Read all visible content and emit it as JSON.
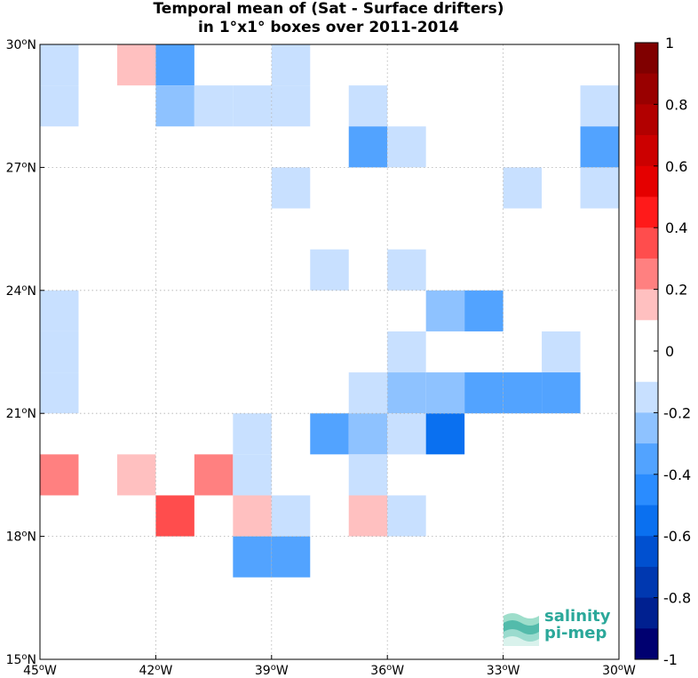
{
  "title": {
    "line1": "Temporal mean of (Sat - Surface drifters)",
    "line2": "in 1°x1° boxes over 2011-2014"
  },
  "map": {
    "lon_range": [
      -45,
      -30
    ],
    "lat_range": [
      15,
      30
    ],
    "x_ticks": [
      {
        "lon": -45,
        "deg": "45",
        "hemi": "W"
      },
      {
        "lon": -42,
        "deg": "42",
        "hemi": "W"
      },
      {
        "lon": -39,
        "deg": "39",
        "hemi": "W"
      },
      {
        "lon": -36,
        "deg": "36",
        "hemi": "W"
      },
      {
        "lon": -33,
        "deg": "33",
        "hemi": "W"
      },
      {
        "lon": -30,
        "deg": "30",
        "hemi": "W"
      }
    ],
    "y_ticks": [
      {
        "lat": 15,
        "deg": "15",
        "hemi": "N"
      },
      {
        "lat": 18,
        "deg": "18",
        "hemi": "N"
      },
      {
        "lat": 21,
        "deg": "21",
        "hemi": "N"
      },
      {
        "lat": 24,
        "deg": "24",
        "hemi": "N"
      },
      {
        "lat": 27,
        "deg": "27",
        "hemi": "N"
      },
      {
        "lat": 30,
        "deg": "30",
        "hemi": "N"
      }
    ],
    "grid": "dotted"
  },
  "chart_data": {
    "type": "heatmap",
    "cell_size_deg": 1,
    "cells": [
      {
        "lon": -45,
        "lat": 29,
        "value": -0.1
      },
      {
        "lon": -45,
        "lat": 28,
        "value": -0.1
      },
      {
        "lon": -43,
        "lat": 29,
        "value": 0.15
      },
      {
        "lon": -42,
        "lat": 29,
        "value": -0.35
      },
      {
        "lon": -42,
        "lat": 28,
        "value": -0.25
      },
      {
        "lon": -39,
        "lat": 29,
        "value": -0.1
      },
      {
        "lon": -41,
        "lat": 28,
        "value": -0.1
      },
      {
        "lon": -40,
        "lat": 28,
        "value": -0.1
      },
      {
        "lon": -39,
        "lat": 28,
        "value": -0.1
      },
      {
        "lon": -37,
        "lat": 28,
        "value": -0.1
      },
      {
        "lon": -31,
        "lat": 28,
        "value": -0.1
      },
      {
        "lon": -37,
        "lat": 27,
        "value": -0.3
      },
      {
        "lon": -36,
        "lat": 27,
        "value": -0.1
      },
      {
        "lon": -31,
        "lat": 27,
        "value": -0.3
      },
      {
        "lon": -39,
        "lat": 26,
        "value": -0.1
      },
      {
        "lon": -33,
        "lat": 26,
        "value": -0.1
      },
      {
        "lon": -31,
        "lat": 26,
        "value": -0.1
      },
      {
        "lon": -38,
        "lat": 24,
        "value": -0.1
      },
      {
        "lon": -36,
        "lat": 24,
        "value": -0.1
      },
      {
        "lon": -45,
        "lat": 23,
        "value": -0.1
      },
      {
        "lon": -45,
        "lat": 22,
        "value": -0.1
      },
      {
        "lon": -45,
        "lat": 21,
        "value": -0.1
      },
      {
        "lon": -35,
        "lat": 23,
        "value": -0.25
      },
      {
        "lon": -34,
        "lat": 23,
        "value": -0.35
      },
      {
        "lon": -36,
        "lat": 22,
        "value": -0.1
      },
      {
        "lon": -32,
        "lat": 22,
        "value": -0.1
      },
      {
        "lon": -37,
        "lat": 21,
        "value": -0.1
      },
      {
        "lon": -36,
        "lat": 21,
        "value": -0.25
      },
      {
        "lon": -35,
        "lat": 21,
        "value": -0.25
      },
      {
        "lon": -34,
        "lat": 21,
        "value": -0.3
      },
      {
        "lon": -33,
        "lat": 21,
        "value": -0.3
      },
      {
        "lon": -32,
        "lat": 21,
        "value": -0.3
      },
      {
        "lon": -40,
        "lat": 20,
        "value": -0.1
      },
      {
        "lon": -38,
        "lat": 20,
        "value": -0.35
      },
      {
        "lon": -37,
        "lat": 20,
        "value": -0.25
      },
      {
        "lon": -36,
        "lat": 20,
        "value": -0.1
      },
      {
        "lon": -35,
        "lat": 20,
        "value": -0.55
      },
      {
        "lon": -45,
        "lat": 19,
        "value": 0.25
      },
      {
        "lon": -43,
        "lat": 19,
        "value": 0.15
      },
      {
        "lon": -41,
        "lat": 19,
        "value": 0.25
      },
      {
        "lon": -40,
        "lat": 19,
        "value": -0.1
      },
      {
        "lon": -37,
        "lat": 19,
        "value": -0.1
      },
      {
        "lon": -42,
        "lat": 18,
        "value": 0.35
      },
      {
        "lon": -40,
        "lat": 18,
        "value": 0.15
      },
      {
        "lon": -39,
        "lat": 18,
        "value": -0.1
      },
      {
        "lon": -37,
        "lat": 18,
        "value": 0.15
      },
      {
        "lon": -36,
        "lat": 18,
        "value": -0.1
      },
      {
        "lon": -40,
        "lat": 17,
        "value": -0.35
      },
      {
        "lon": -39,
        "lat": 17,
        "value": -0.35
      }
    ]
  },
  "colorbar": {
    "range": [
      -1,
      1
    ],
    "step": 0.1,
    "tick_labels": [
      {
        "value": 1,
        "label": "1"
      },
      {
        "value": 0.8,
        "label": "0.8"
      },
      {
        "value": 0.6,
        "label": "0.6"
      },
      {
        "value": 0.4,
        "label": "0.4"
      },
      {
        "value": 0.2,
        "label": "0.2"
      },
      {
        "value": 0,
        "label": "0"
      },
      {
        "value": -0.2,
        "label": "-0.2"
      },
      {
        "value": -0.4,
        "label": "-0.4"
      },
      {
        "value": -0.6,
        "label": "-0.6"
      },
      {
        "value": -0.8,
        "label": "-0.8"
      },
      {
        "value": -1,
        "label": "-1"
      }
    ],
    "colors_top_to_bottom": [
      "#800000",
      "#990000",
      "#b20000",
      "#cc0000",
      "#e50000",
      "#ff1a1a",
      "#ff4d4d",
      "#ff8080",
      "#ffc0c0",
      "#ffffff",
      "#ffffff",
      "#c8e0ff",
      "#8ec2ff",
      "#52a3ff",
      "#2a8cff",
      "#0a70f0",
      "#0050d0",
      "#0038b0",
      "#002090",
      "#000070"
    ]
  },
  "logo": {
    "line1": "salinity",
    "line2": "pi-mep",
    "color": "#2ba89a"
  }
}
